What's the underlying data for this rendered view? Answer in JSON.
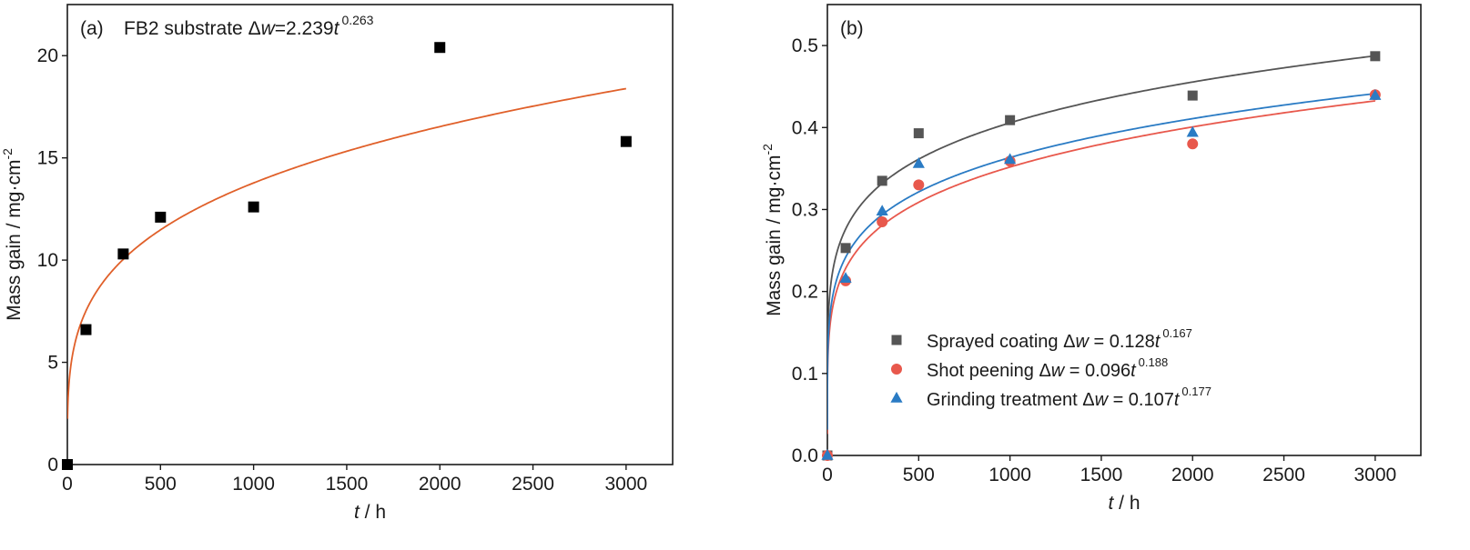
{
  "chart_data": [
    {
      "type": "scatter",
      "panel_label": "(a)",
      "annotation": {
        "prefix": "FB2 substrate ",
        "delta": "Δ",
        "w": "w",
        "eq": "=2.239",
        "t": "t",
        "exp": "0.263"
      },
      "xlabel": {
        "var": "t",
        "unit": " / h"
      },
      "ylabel": "Mass gain / mg·cm",
      "ylabel_sup": "-2",
      "xlim": [
        0,
        3250
      ],
      "ylim": [
        0,
        22.5
      ],
      "xticks": [
        "0",
        "500",
        "1000",
        "1500",
        "2000",
        "2500",
        "3000"
      ],
      "yticks": [
        "0",
        "5",
        "10",
        "15",
        "20"
      ],
      "series": [
        {
          "marker": "square",
          "color": "#000000",
          "x": [
            0,
            100,
            300,
            500,
            1000,
            2000,
            3000
          ],
          "y": [
            0,
            6.6,
            10.3,
            12.1,
            12.6,
            20.4,
            15.8
          ]
        }
      ],
      "fit": {
        "a": 2.239,
        "b": 0.263,
        "color": "#e0602a",
        "x_range": [
          1,
          3000
        ]
      }
    },
    {
      "type": "scatter",
      "panel_label": "(b)",
      "xlabel": {
        "var": "t",
        "unit": " / h"
      },
      "ylabel": "Mass gain / mg·cm",
      "ylabel_sup": "-2",
      "xlim": [
        0,
        3250
      ],
      "ylim": [
        0,
        0.55
      ],
      "xticks": [
        "0",
        "500",
        "1000",
        "1500",
        "2000",
        "2500",
        "3000"
      ],
      "yticks": [
        "0.0",
        "0.1",
        "0.2",
        "0.3",
        "0.4",
        "0.5"
      ],
      "legend_position": "bottom-left",
      "series": [
        {
          "name": "Sprayed coating",
          "eq": {
            "delta": "Δ",
            "w": "w",
            "eq": " = 0.128",
            "t": "t",
            "exp": "0.167"
          },
          "marker": "square",
          "color": "#555555",
          "x": [
            0,
            100,
            300,
            500,
            1000,
            2000,
            3000
          ],
          "y": [
            0.0,
            0.253,
            0.335,
            0.393,
            0.409,
            0.439,
            0.487
          ],
          "fit": {
            "a": 0.128,
            "b": 0.167
          }
        },
        {
          "name": "Shot peening",
          "eq": {
            "delta": "Δ",
            "w": "w",
            "eq": " = 0.096",
            "t": "t",
            "exp": "0.188"
          },
          "marker": "circle",
          "color": "#e8584c",
          "x": [
            0,
            100,
            300,
            500,
            1000,
            2000,
            3000
          ],
          "y": [
            0.0,
            0.213,
            0.285,
            0.33,
            0.359,
            0.38,
            0.44
          ],
          "fit": {
            "a": 0.096,
            "b": 0.188
          }
        },
        {
          "name": "Grinding treatment",
          "eq": {
            "delta": "Δ",
            "w": "w",
            "eq": " = 0.107",
            "t": "t",
            "exp": "0.177"
          },
          "marker": "triangle",
          "color": "#2a7bc4",
          "x": [
            0,
            100,
            300,
            500,
            1000,
            2000,
            3000
          ],
          "y": [
            0.0,
            0.216,
            0.298,
            0.356,
            0.361,
            0.394,
            0.439
          ],
          "fit": {
            "a": 0.107,
            "b": 0.177
          }
        }
      ]
    }
  ]
}
